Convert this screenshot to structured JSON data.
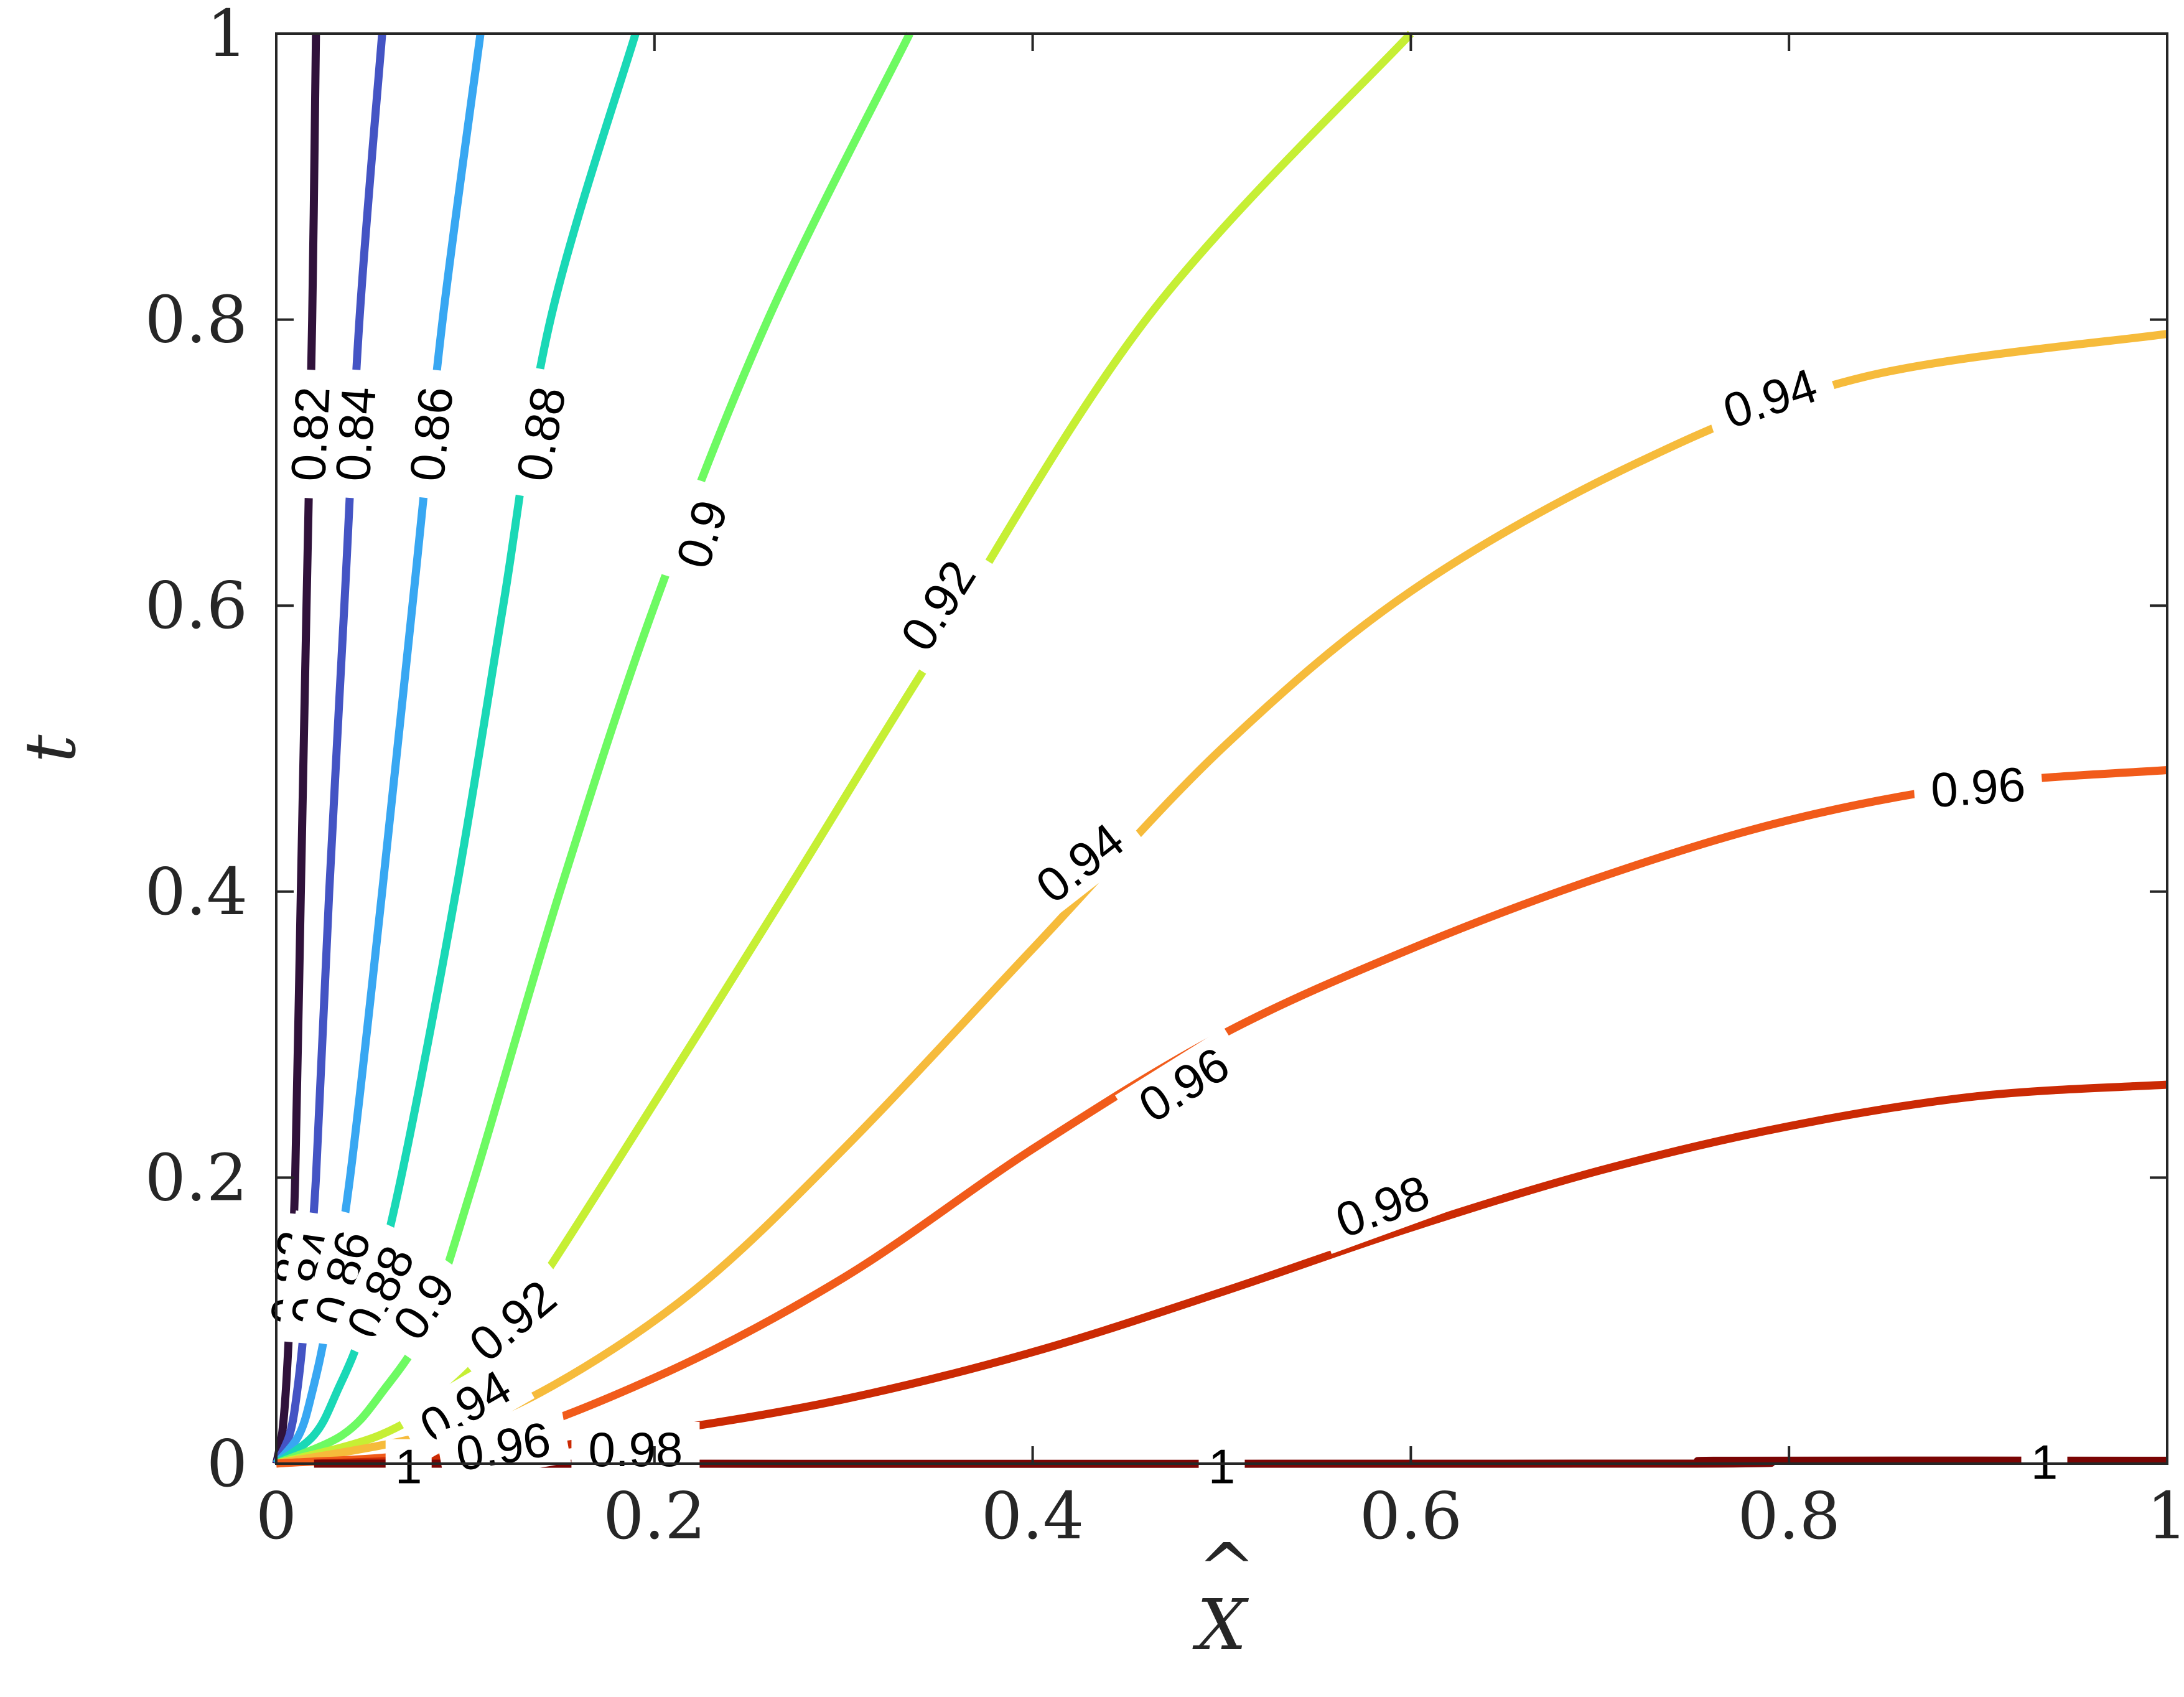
{
  "chart_data": {
    "type": "contour",
    "title": "",
    "xlabel": "X",
    "ylabel": "t",
    "axis_label_accent": "^",
    "xlim": [
      0,
      1
    ],
    "ylim": [
      0,
      1
    ],
    "xticks": [
      0,
      0.2,
      0.4,
      0.6,
      0.8,
      1
    ],
    "yticks": [
      0,
      0.2,
      0.4,
      0.6,
      0.8,
      1
    ],
    "xtick_labels": [
      "0",
      "0.2",
      "0.4",
      "0.6",
      "0.8",
      "1"
    ],
    "ytick_labels": [
      "0",
      "0.2",
      "0.4",
      "0.6",
      "0.8",
      "1"
    ],
    "grid": false,
    "colormap": "turbo",
    "levels": [
      {
        "level": "0.82",
        "color": "#30123b",
        "points": [
          [
            0.0,
            0.0
          ],
          [
            0.003,
            0.02
          ],
          [
            0.005,
            0.05
          ],
          [
            0.007,
            0.1
          ],
          [
            0.01,
            0.2
          ],
          [
            0.013,
            0.4
          ],
          [
            0.016,
            0.6
          ],
          [
            0.019,
            0.8
          ],
          [
            0.021,
            1.0
          ]
        ],
        "labels": [
          {
            "x": 0.018,
            "y": 0.72,
            "angle": -87
          },
          {
            "x": 0.008,
            "y": 0.13,
            "angle": -85
          }
        ]
      },
      {
        "level": "0.84",
        "color": "#4454c4",
        "points": [
          [
            0.0,
            0.0
          ],
          [
            0.007,
            0.02
          ],
          [
            0.011,
            0.05
          ],
          [
            0.015,
            0.1
          ],
          [
            0.021,
            0.2
          ],
          [
            0.028,
            0.4
          ],
          [
            0.036,
            0.6
          ],
          [
            0.044,
            0.8
          ],
          [
            0.056,
            1.0
          ]
        ],
        "labels": [
          {
            "x": 0.042,
            "y": 0.72,
            "angle": -86
          },
          {
            "x": 0.02,
            "y": 0.13,
            "angle": -82
          }
        ]
      },
      {
        "level": "0.86",
        "color": "#38a7f2",
        "points": [
          [
            0.0,
            0.0
          ],
          [
            0.012,
            0.02
          ],
          [
            0.019,
            0.05
          ],
          [
            0.027,
            0.1
          ],
          [
            0.039,
            0.2
          ],
          [
            0.056,
            0.4
          ],
          [
            0.072,
            0.6
          ],
          [
            0.088,
            0.8
          ],
          [
            0.108,
            1.0
          ]
        ],
        "labels": [
          {
            "x": 0.082,
            "y": 0.72,
            "angle": -84
          },
          {
            "x": 0.035,
            "y": 0.13,
            "angle": -75
          }
        ]
      },
      {
        "level": "0.88",
        "color": "#1ad8b6",
        "points": [
          [
            0.0,
            0.0
          ],
          [
            0.02,
            0.02
          ],
          [
            0.032,
            0.05
          ],
          [
            0.047,
            0.1
          ],
          [
            0.066,
            0.2
          ],
          [
            0.095,
            0.4
          ],
          [
            0.12,
            0.6
          ],
          [
            0.145,
            0.8
          ],
          [
            0.19,
            1.0
          ]
        ],
        "labels": [
          {
            "x": 0.14,
            "y": 0.72,
            "angle": -80
          },
          {
            "x": 0.055,
            "y": 0.12,
            "angle": -65
          }
        ]
      },
      {
        "level": "0.9",
        "color": "#6dfa62",
        "points": [
          [
            0.0,
            0.0
          ],
          [
            0.035,
            0.02
          ],
          [
            0.056,
            0.05
          ],
          [
            0.08,
            0.1
          ],
          [
            0.105,
            0.2
          ],
          [
            0.15,
            0.4
          ],
          [
            0.2,
            0.6
          ],
          [
            0.26,
            0.8
          ],
          [
            0.335,
            1.0
          ]
        ],
        "labels": [
          {
            "x": 0.225,
            "y": 0.65,
            "angle": -72
          },
          {
            "x": 0.078,
            "y": 0.11,
            "angle": -55
          }
        ]
      },
      {
        "level": "0.92",
        "color": "#c6ef34",
        "points": [
          [
            0.0,
            0.0
          ],
          [
            0.055,
            0.02
          ],
          [
            0.09,
            0.05
          ],
          [
            0.125,
            0.1
          ],
          [
            0.175,
            0.2
          ],
          [
            0.27,
            0.4
          ],
          [
            0.34,
            0.55
          ],
          [
            0.46,
            0.8
          ],
          [
            0.6,
            1.0
          ]
        ],
        "labels": [
          {
            "x": 0.35,
            "y": 0.6,
            "angle": -58
          },
          {
            "x": 0.125,
            "y": 0.1,
            "angle": -40
          }
        ]
      },
      {
        "level": "0.94",
        "color": "#f6bb3b",
        "points": [
          [
            0.0,
            0.0
          ],
          [
            0.08,
            0.02
          ],
          [
            0.14,
            0.05
          ],
          [
            0.22,
            0.12
          ],
          [
            0.3,
            0.22
          ],
          [
            0.4,
            0.36
          ],
          [
            0.5,
            0.5
          ],
          [
            0.6,
            0.61
          ],
          [
            0.72,
            0.7
          ],
          [
            0.84,
            0.76
          ],
          [
            1.0,
            0.79
          ]
        ],
        "labels": [
          {
            "x": 0.425,
            "y": 0.42,
            "angle": -38
          },
          {
            "x": 0.79,
            "y": 0.745,
            "angle": -18
          },
          {
            "x": 0.1,
            "y": 0.04,
            "angle": -30
          }
        ]
      },
      {
        "level": "0.96",
        "color": "#f15b1a",
        "points": [
          [
            0.0,
            0.0
          ],
          [
            0.1,
            0.012
          ],
          [
            0.2,
            0.06
          ],
          [
            0.3,
            0.13
          ],
          [
            0.4,
            0.22
          ],
          [
            0.5,
            0.3
          ],
          [
            0.6,
            0.36
          ],
          [
            0.7,
            0.41
          ],
          [
            0.8,
            0.45
          ],
          [
            0.9,
            0.475
          ],
          [
            1.0,
            0.485
          ]
        ],
        "labels": [
          {
            "x": 0.48,
            "y": 0.265,
            "angle": -32
          },
          {
            "x": 0.9,
            "y": 0.473,
            "angle": -4
          },
          {
            "x": 0.12,
            "y": 0.012,
            "angle": -10
          }
        ]
      },
      {
        "level": "0.98",
        "color": "#cb2a04",
        "points": [
          [
            0.02,
            0.0
          ],
          [
            0.1,
            0.005
          ],
          [
            0.2,
            0.022
          ],
          [
            0.3,
            0.045
          ],
          [
            0.4,
            0.078
          ],
          [
            0.5,
            0.12
          ],
          [
            0.6,
            0.165
          ],
          [
            0.7,
            0.205
          ],
          [
            0.8,
            0.236
          ],
          [
            0.9,
            0.257
          ],
          [
            1.0,
            0.265
          ]
        ],
        "labels": [
          {
            "x": 0.585,
            "y": 0.18,
            "angle": -20
          },
          {
            "x": 0.19,
            "y": 0.01,
            "angle": 0
          }
        ]
      },
      {
        "level": "1",
        "color": "#7a0403",
        "points": [
          [
            0.02,
            0.0
          ],
          [
            0.74,
            0.0
          ],
          [
            0.76,
            0.002
          ],
          [
            1.0,
            0.002
          ]
        ],
        "labels": [
          {
            "x": 0.5,
            "y": -0.002,
            "angle": 0
          },
          {
            "x": 0.935,
            "y": 0.001,
            "angle": 0
          },
          {
            "x": 0.07,
            "y": -0.002,
            "angle": 0
          }
        ]
      }
    ]
  }
}
